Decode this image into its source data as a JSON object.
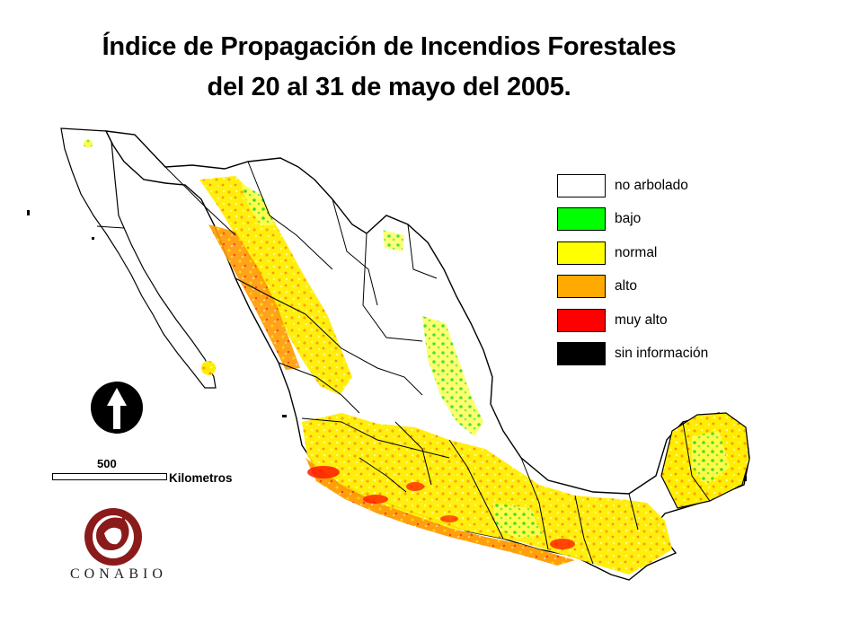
{
  "title": {
    "line1": "Índice de Propagación de Incendios Forestales",
    "line2": "del 20 al 31 de mayo del 2005."
  },
  "legend": {
    "items": [
      {
        "label": "no arbolado",
        "color": "#ffffff"
      },
      {
        "label": "bajo",
        "color": "#00ff00"
      },
      {
        "label": "normal",
        "color": "#ffff00"
      },
      {
        "label": "alto",
        "color": "#ffaa00"
      },
      {
        "label": "muy alto",
        "color": "#ff0000"
      },
      {
        "label": "sin información",
        "color": "#000000"
      }
    ]
  },
  "scale": {
    "value": "500",
    "unit": "Kilometros"
  },
  "north_arrow": {
    "icon": "north-arrow-icon"
  },
  "logo": {
    "icon": "conabio-logo-icon",
    "text": "CONABIO",
    "color": "#8b1a1a"
  }
}
